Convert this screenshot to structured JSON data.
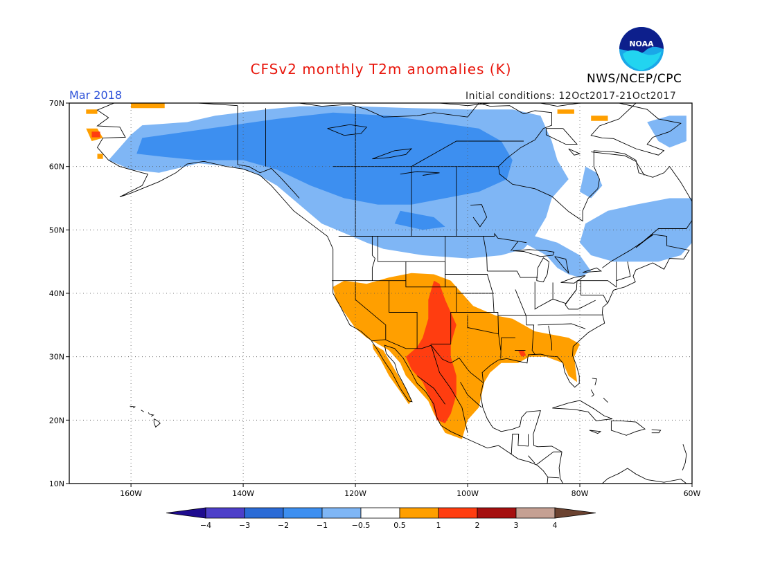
{
  "header": {
    "title": "CFSv2 monthly T2m anomalies (K)",
    "brand": "NWS/NCEP/CPC",
    "month": "Mar 2018",
    "initial_conditions": "Initial conditions: 12Oct2017-21Oct2017",
    "logo_text": "NOAA"
  },
  "map": {
    "lat_labels": [
      "70N",
      "60N",
      "50N",
      "40N",
      "30N",
      "20N",
      "10N"
    ],
    "lon_labels": [
      "160W",
      "140W",
      "120W",
      "100W",
      "80W",
      "60W"
    ],
    "extent": {
      "lon_min": -171,
      "lon_max": -60,
      "lat_min": 10,
      "lat_max": 70
    },
    "grid": "dotted every 10 degrees",
    "anomaly_regions": [
      {
        "region": "Alaska / northwestern Canada / Yukon",
        "category": "-1 to -0.5"
      },
      {
        "region": "central Canada (Nunavut / NWT)",
        "category": "-2 to -1"
      },
      {
        "region": "US northern border & Great Lakes",
        "category": "-1 to -0.5"
      },
      {
        "region": "Quebec / Labrador / Atlantic Canada",
        "category": "-1 to -0.5"
      },
      {
        "region": "US Southwest & southern Plains",
        "category": "0.5 to 1"
      },
      {
        "region": "New Mexico / west Texas / northern Mexico",
        "category": "1 to 2"
      },
      {
        "region": "Gulf coast & Florida",
        "category": "0.5 to 1"
      },
      {
        "region": "western Alaska coast",
        "category": "0.5 to 2"
      }
    ]
  },
  "colorbar": {
    "labels": [
      "-4",
      "-3",
      "-2",
      "-1",
      "-0.5",
      "0.5",
      "1",
      "2",
      "3",
      "4"
    ],
    "colors": [
      "#1f0c8f",
      "#4d3fc9",
      "#2b6bd6",
      "#3d8ff0",
      "#7fb6f5",
      "#ffffff",
      "#ff9f00",
      "#ff3d10",
      "#a50f0f",
      "#c5a093",
      "#6b4230"
    ]
  }
}
